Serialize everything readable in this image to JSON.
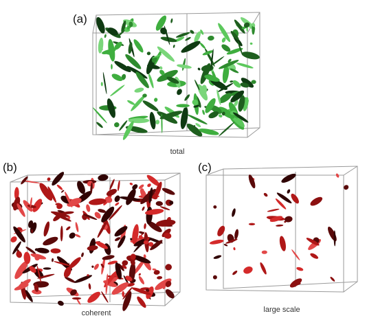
{
  "panels": [
    {
      "label": "(a)",
      "caption": "total"
    },
    {
      "label": "(b)",
      "caption": "coherent"
    },
    {
      "label": "(c)",
      "caption": "large scale"
    }
  ]
}
